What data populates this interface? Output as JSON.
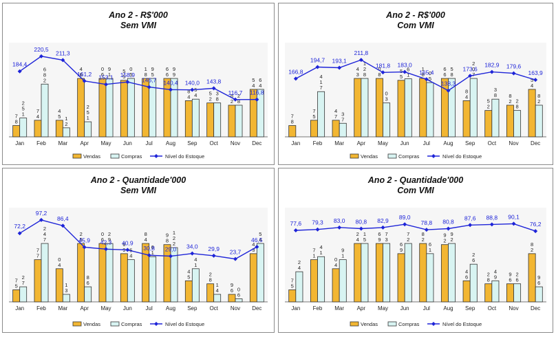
{
  "legend": {
    "vendas": "Vendas",
    "compras": "Compras",
    "estoque": "Nível do Estoque"
  },
  "colors": {
    "vendas": "#F2B632",
    "compras": "#D8F4F2",
    "estoque": "#1E24D8",
    "border": "#8A8A8A",
    "plot_bg": "#F6F6F6"
  },
  "chart_data": [
    {
      "type": "bar",
      "title": "Ano 2 - R$'000",
      "subtitle": "Sem VMI",
      "categories": [
        "Jan",
        "Feb",
        "Mar",
        "Apr",
        "May",
        "Jun",
        "Jul",
        "Aug",
        "Sep",
        "Oct",
        "Nov",
        "Dec"
      ],
      "series": [
        {
          "name": "Vendas",
          "values": [
            15,
            22,
            22,
            88,
            80,
            75,
            95,
            120,
            48,
            45,
            42,
            63
          ]
        },
        {
          "name": "Compras",
          "values": [
            25,
            70,
            12,
            20,
            78,
            80,
            85,
            116,
            50,
            45,
            42,
            63
          ]
        },
        {
          "name": "Nível do Estoque",
          "values": [
            184.4,
            220.5,
            211.3,
            161.2,
            153.1,
            158.9,
            146.7,
            140.4,
            140.0,
            143.8,
            116.7,
            116.8
          ]
        }
      ],
      "bar_labels": {
        "vendas": [
          "7\n8",
          "7\n4",
          "4\n5",
          "4\n6",
          "0\n6",
          "5\n5",
          "1\n8",
          "6\n6",
          "8\n4",
          "5\n2",
          "8\n2",
          "5\n4"
        ],
        "compras": [
          "2\n5\n1",
          "6\n8\n2",
          "1\n2",
          "2\n5\n1",
          "9\n1",
          "0\n5",
          "9\n5",
          "9\n9",
          "5\n4",
          "3\n8",
          "2\n8",
          "6\n4"
        ]
      },
      "line_labels": [
        "184,4",
        "220,5",
        "211,3",
        "161,2",
        "153,1",
        "158,9",
        "146,7",
        "140,4",
        "140,0",
        "143,8",
        "116,7",
        "116,8"
      ]
    },
    {
      "type": "bar",
      "title": "Ano 2 - R$'000",
      "subtitle": "Com VMI",
      "categories": [
        "Jan",
        "Feb",
        "Mar",
        "Apr",
        "May",
        "Jun",
        "Jul",
        "Aug",
        "Sep",
        "Oct",
        "Nov",
        "Dec"
      ],
      "series": [
        {
          "name": "Vendas",
          "values": [
            15,
            22,
            22,
            88,
            80,
            75,
            95,
            120,
            48,
            35,
            42,
            63
          ]
        },
        {
          "name": "Compras",
          "values": [
            0,
            60,
            18,
            115,
            45,
            77,
            72,
            85,
            98,
            50,
            35,
            42
          ]
        },
        {
          "name": "Nível do Estoque",
          "values": [
            166.8,
            194.7,
            193.1,
            211.8,
            181.8,
            183.0,
            165.4,
            138.3,
            173.6,
            182.9,
            179.6,
            163.9
          ]
        }
      ],
      "bar_labels": {
        "vendas": [
          "7\n8",
          "7\n5",
          "4\n7",
          "4\n3",
          "0\n8",
          "5\n5",
          "1\n8",
          "6\n6",
          "8\n4",
          "5\n2",
          "8\n2",
          "5\n4"
        ],
        "compras": [
          "",
          "4\n1\n7",
          "3\n7",
          "1\n2\n8",
          "0\n3",
          "6\n1",
          "0\n5",
          "5\n8",
          "2\n0\n7",
          "3\n8",
          "2\n8",
          "8\n2"
        ]
      },
      "line_labels": [
        "166,8",
        "194,7",
        "193,1",
        "211,8",
        "181,8",
        "183,0",
        "165,4",
        "138,3",
        "173,6",
        "182,9",
        "179,6",
        "163,9"
      ]
    },
    {
      "type": "bar",
      "title": "Ano 2 - Quantidade'000",
      "subtitle": "Sem VMI",
      "categories": [
        "Jan",
        "Feb",
        "Mar",
        "Apr",
        "May",
        "Jun",
        "Jul",
        "Aug",
        "Sep",
        "Oct",
        "Nov",
        "Dec"
      ],
      "series": [
        {
          "name": "Vendas",
          "values": [
            8,
            28,
            22,
            75,
            45,
            32,
            46,
            38,
            14,
            12,
            5,
            32
          ]
        },
        {
          "name": "Compras",
          "values": [
            10,
            66,
            5,
            10,
            40,
            28,
            30,
            36,
            22,
            5,
            2,
            66
          ]
        },
        {
          "name": "Nível do Estoque",
          "values": [
            72.2,
            97.2,
            86.4,
            45.9,
            42.3,
            40.9,
            30.8,
            29.0,
            34.0,
            29.9,
            23.7,
            46.5
          ]
        }
      ],
      "bar_labels": {
        "vendas": [
          "7\n5",
          "7\n7",
          "0\n4",
          "2\n5",
          "0\n6",
          "6\n9",
          "8\n4",
          "9\n8",
          "4\n5",
          "2\n8",
          "9\n6",
          "4\n3"
        ],
        "compras": [
          "2\n7",
          "2\n4\n7",
          "1\n3",
          "8\n6",
          "2\n9",
          "5\n4",
          "6\n1",
          "1\n2\n2",
          "4\n1",
          "1\n4",
          "0\n6",
          "5\n4"
        ]
      },
      "line_labels": [
        "72,2",
        "97,2",
        "86,4",
        "45,9",
        "42,3",
        "40,9",
        "30,8",
        "29,0",
        "34,0",
        "29,9",
        "23,7",
        "46,5"
      ]
    },
    {
      "type": "bar",
      "title": "Ano 2 - Quantidade'000",
      "subtitle": "Com VMI",
      "categories": [
        "Jan",
        "Feb",
        "Mar",
        "Apr",
        "May",
        "Jun",
        "Jul",
        "Aug",
        "Sep",
        "Oct",
        "Nov",
        "Dec"
      ],
      "series": [
        {
          "name": "Vendas",
          "values": [
            8,
            28,
            22,
            75,
            45,
            32,
            46,
            38,
            14,
            12,
            12,
            32
          ]
        },
        {
          "name": "Compras",
          "values": [
            20,
            30,
            28,
            72,
            50,
            45,
            32,
            40,
            25,
            14,
            12,
            10
          ]
        },
        {
          "name": "Nível do Estoque",
          "values": [
            77.6,
            79.3,
            83.0,
            80.8,
            82.9,
            89.0,
            78.8,
            80.8,
            87.6,
            88.8,
            90.1,
            76.2
          ]
        }
      ],
      "bar_labels": {
        "vendas": [
          "7\n5",
          "7\n1",
          "0\n4",
          "2\n4",
          "6\n9",
          "6\n9",
          "8\n2",
          "9\n2",
          "4\n6",
          "2\n8",
          "9\n6",
          "8\n2"
        ],
        "compras": [
          "2\n4",
          "4\n1",
          "9\n1",
          "1\n5",
          "7\n3",
          "7\n2",
          "6\n1",
          "9\n2",
          "2\n6",
          "4\n9",
          "2\n6",
          "9\n6"
        ]
      },
      "line_labels": [
        "77,6",
        "79,3",
        "83,0",
        "80,8",
        "82,9",
        "89,0",
        "78,8",
        "80,8",
        "87,6",
        "88,8",
        "90,1",
        "76,2"
      ]
    }
  ]
}
